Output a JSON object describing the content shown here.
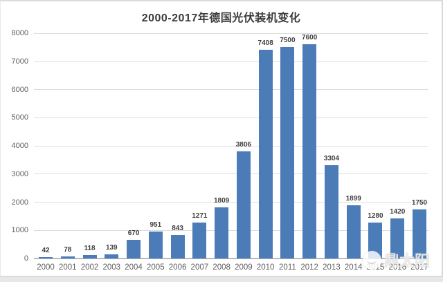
{
  "title": "2000-2017年德国光伏装机变化",
  "watermark": {
    "text": "鼎太阳",
    "logo": "sun-logo-icon"
  },
  "colors": {
    "bar": "#4b7cb8",
    "grid": "#dddddd",
    "axis": "#b9b9b9",
    "title_text": "#3c3c3c",
    "value_label": "#3f3f3f",
    "tick_label": "#5f5f5f",
    "background": "#ffffff",
    "frame": "#e9e7e5"
  },
  "chart_data": {
    "type": "bar",
    "title": "2000-2017年德国光伏装机变化",
    "categories": [
      "2000",
      "2001",
      "2002",
      "2003",
      "2004",
      "2005",
      "2006",
      "2007",
      "2008",
      "2009",
      "2010",
      "2011",
      "2012",
      "2013",
      "2014",
      "2015",
      "2016",
      "2017"
    ],
    "values": [
      42,
      78,
      118,
      139,
      670,
      951,
      843,
      1271,
      1809,
      3806,
      7408,
      7500,
      7600,
      3304,
      1899,
      1280,
      1420,
      1750
    ],
    "xlabel": "",
    "ylabel": "",
    "ylim": [
      0,
      8000
    ],
    "yticks": [
      0,
      1000,
      2000,
      3000,
      4000,
      5000,
      6000,
      7000,
      8000
    ],
    "grid": true,
    "legend": false,
    "data_labels": true
  }
}
